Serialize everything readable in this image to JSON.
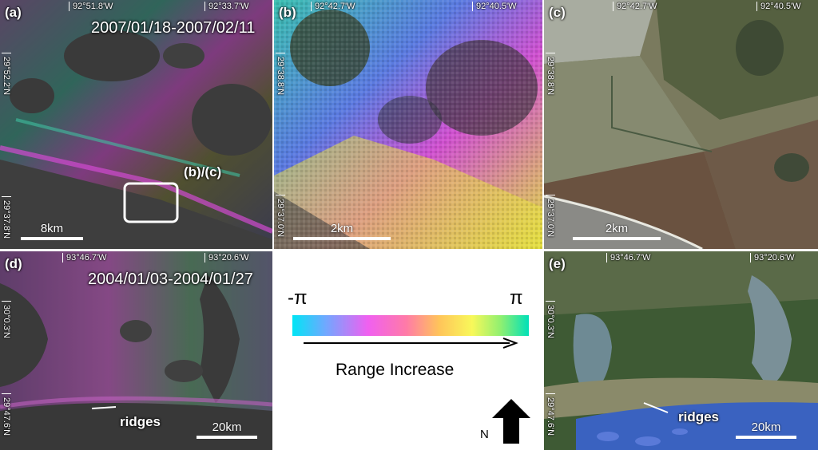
{
  "panels": {
    "a": {
      "label": "(a)",
      "date": "2007/01/18-2007/02/11",
      "lon_left": "92°51.8'W",
      "lon_right": "92°33.7'W",
      "lat_top": "29°52.2'N",
      "lat_bottom": "29°37.8'N",
      "inset_label": "(b)/(c)",
      "scale": "8km"
    },
    "b": {
      "label": "(b)",
      "lon_left": "92°42.7'W",
      "lon_right": "92°40.5'W",
      "lat_top": "29°38.8'N",
      "lat_bottom": "29°37.0'N",
      "scale": "2km"
    },
    "c": {
      "label": "(c)",
      "lon_left": "92°42.7'W",
      "lon_right": "92°40.5'W",
      "lat_top": "29°38.8'N",
      "lat_bottom": "29°37.0'N",
      "scale": "2km"
    },
    "d": {
      "label": "(d)",
      "date": "2004/01/03-2004/01/27",
      "lon_left": "93°46.7'W",
      "lon_right": "93°20.6'W",
      "lat_top": "30°0.3'N",
      "lat_bottom": "29°47.6'N",
      "annotation": "ridges",
      "scale": "20km"
    },
    "e": {
      "label": "(e)",
      "lon_left": "93°46.7'W",
      "lon_right": "93°20.6'W",
      "lat_top": "30°0.3'N",
      "lat_bottom": "29°47.6'N",
      "annotation": "ridges",
      "scale": "20km"
    }
  },
  "legend": {
    "min_label": "-π",
    "max_label": "π",
    "arrow_label": "Range Increase",
    "north_label": "N",
    "colors": [
      "#00e5f5",
      "#70a8ff",
      "#f060f0",
      "#ff7aa8",
      "#ffc45a",
      "#f8f85a",
      "#90f070",
      "#00e0b8"
    ]
  }
}
